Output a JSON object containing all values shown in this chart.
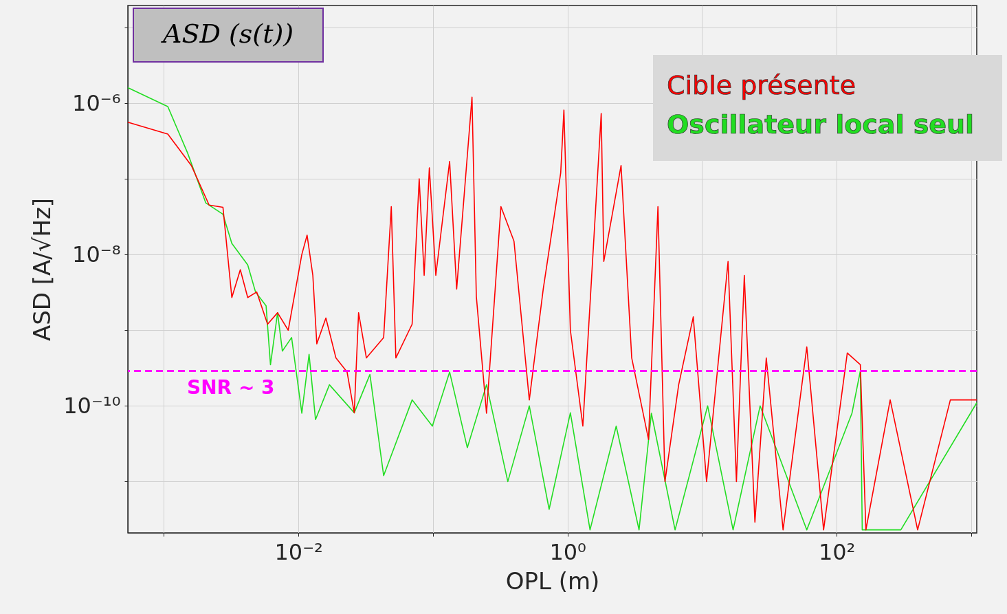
{
  "chart_data": {
    "type": "line",
    "title": "ASD (s(t))",
    "xlabel": "OPL (m)",
    "ylabel": "ASD  [A/√Hz]",
    "log": "xy",
    "grid": true,
    "legend": "top right",
    "xlim": [
      0.00054,
      1100
    ],
    "ylim": [
      2.1e-12,
      1.95e-05
    ],
    "xticks": [
      {
        "value": 0.001,
        "label": null
      },
      {
        "value": 0.01,
        "label": "10⁻²"
      },
      {
        "value": 0.1,
        "label": null
      },
      {
        "value": 1,
        "label": "10⁰"
      },
      {
        "value": 10,
        "label": null
      },
      {
        "value": 100,
        "label": "10²"
      },
      {
        "value": 1000,
        "label": null
      }
    ],
    "yticks": [
      {
        "value": 1e-11,
        "label": null
      },
      {
        "value": 1e-10,
        "label": "10⁻¹⁰"
      },
      {
        "value": 1e-09,
        "label": null
      },
      {
        "value": 1e-08,
        "label": "10⁻⁸"
      },
      {
        "value": 1e-07,
        "label": null
      },
      {
        "value": 1e-06,
        "label": "10⁻⁶"
      },
      {
        "value": 1e-05,
        "label": null
      }
    ],
    "ref_lines": [
      {
        "axis": "y",
        "value": 2.9e-10,
        "label": "SNR ~  3",
        "color": "#ff00ff",
        "line_style": "dashed"
      }
    ],
    "series": [
      {
        "name": "Oscillateur local seul",
        "color": "#22dd22",
        "x": [
          0.00054,
          0.00107,
          0.0015,
          0.00205,
          0.00275,
          0.0032,
          0.0042,
          0.0048,
          0.00575,
          0.0062,
          0.007,
          0.0076,
          0.0089,
          0.0106,
          0.012,
          0.0134,
          0.017,
          0.026,
          0.034,
          0.043,
          0.07,
          0.099,
          0.133,
          0.18,
          0.25,
          0.36,
          0.52,
          0.73,
          1.05,
          1.47,
          2.3,
          3.4,
          4.2,
          6.3,
          11,
          17,
          27,
          60,
          130,
          150,
          155,
          300,
          1100
        ],
        "values": [
          1.6e-06,
          9e-07,
          2.2e-07,
          4.8e-08,
          3.4e-08,
          1.4e-08,
          7.3e-09,
          3.2e-09,
          2.1e-09,
          3.5e-10,
          1.7e-09,
          5.3e-10,
          8e-10,
          8e-11,
          4.8e-10,
          6.6e-11,
          1.9e-10,
          8.1e-11,
          2.6e-10,
          1.2e-11,
          1.2e-10,
          5.4e-11,
          2.8e-10,
          2.8e-11,
          1.9e-10,
          1e-11,
          1e-10,
          4.3e-12,
          8.1e-11,
          2.3e-12,
          5.4e-11,
          2.3e-12,
          8e-11,
          2.3e-12,
          1e-10,
          2.3e-12,
          1e-10,
          2.3e-12,
          8e-11,
          2.9e-10,
          2.3e-12,
          2.3e-12,
          1.1e-10
        ]
      },
      {
        "name": "Cible présente",
        "color": "#ff0000",
        "x": [
          0.00054,
          0.00107,
          0.0016,
          0.00217,
          0.00275,
          0.0032,
          0.0037,
          0.0042,
          0.0049,
          0.0059,
          0.007,
          0.0084,
          0.0106,
          0.0116,
          0.0128,
          0.0137,
          0.016,
          0.019,
          0.023,
          0.026,
          0.028,
          0.032,
          0.043,
          0.049,
          0.053,
          0.07,
          0.079,
          0.086,
          0.094,
          0.105,
          0.133,
          0.15,
          0.195,
          0.21,
          0.25,
          0.32,
          0.4,
          0.52,
          0.66,
          0.89,
          0.94,
          1.05,
          1.3,
          1.78,
          1.86,
          2.5,
          3,
          4,
          4.7,
          5.3,
          6.7,
          8.6,
          10.8,
          15.6,
          18,
          20.6,
          24.7,
          30,
          40,
          60,
          80,
          120,
          150,
          165,
          250,
          400,
          700,
          1100
        ],
        "values": [
          5.6e-07,
          3.9e-07,
          1.5e-07,
          4.5e-08,
          4.2e-08,
          2.7e-09,
          6.3e-09,
          2.7e-09,
          3.2e-09,
          1.2e-09,
          1.7e-09,
          1e-09,
          1e-08,
          1.8e-08,
          5.3e-09,
          6.6e-10,
          1.45e-09,
          4.3e-10,
          2.8e-10,
          8.1e-11,
          1.7e-09,
          4.3e-10,
          8e-10,
          4.3e-08,
          4.3e-10,
          1.2e-09,
          1e-07,
          5.3e-09,
          1.4e-07,
          5.3e-09,
          1.7e-07,
          3.5e-09,
          1.2e-06,
          2.8e-09,
          8e-11,
          4.3e-08,
          1.5e-08,
          1.2e-10,
          3.5e-09,
          1.2e-07,
          8.1e-07,
          1e-09,
          5.4e-11,
          7.3e-07,
          8.1e-09,
          1.5e-07,
          4.3e-10,
          3.6e-11,
          4.3e-08,
          1e-11,
          1.9e-10,
          1.5e-09,
          1e-11,
          8.1e-09,
          1e-11,
          5.3e-09,
          2.9e-12,
          4.3e-10,
          2.3e-12,
          6e-10,
          2.3e-12,
          5e-10,
          3.5e-10,
          2.3e-12,
          1.2e-10,
          2.3e-12,
          1.2e-10,
          1.2e-10
        ]
      }
    ]
  }
}
